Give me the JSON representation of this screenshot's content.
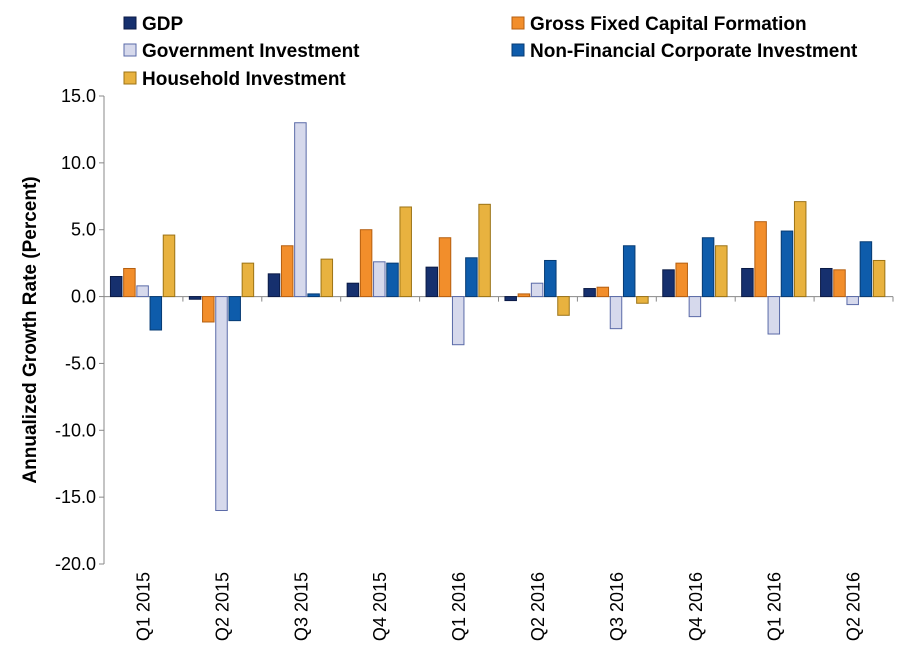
{
  "chart_data": {
    "type": "bar",
    "title": "",
    "xlabel": "",
    "ylabel": "Annualized Growth Rate (Percent)",
    "ylim": [
      -20,
      15
    ],
    "yticks": [
      15,
      10,
      5,
      0,
      -5,
      -10,
      -15,
      -20
    ],
    "ytick_labels": [
      "15.0",
      "10.0",
      "5.0",
      "0.0",
      "-5.0",
      "-10.0",
      "-15.0",
      "-20.0"
    ],
    "grid": false,
    "legend_position": "top",
    "categories": [
      "Q1 2015",
      "Q2 2015",
      "Q3 2015",
      "Q4 2015",
      "Q1 2016",
      "Q2 2016",
      "Q3 2016",
      "Q4 2016",
      "Q1 2016",
      "Q2 2016"
    ],
    "series": [
      {
        "name": "GDP",
        "color": "#16306e",
        "border": "#0b1a45",
        "values": [
          1.5,
          -0.2,
          1.7,
          1.0,
          2.2,
          -0.3,
          0.6,
          2.0,
          2.1,
          2.1
        ]
      },
      {
        "name": "Gross Fixed Capital Formation",
        "color": "#f28e2b",
        "border": "#b55f10",
        "values": [
          2.1,
          -1.9,
          3.8,
          5.0,
          4.4,
          0.2,
          0.7,
          2.5,
          5.6,
          2.0
        ]
      },
      {
        "name": "Government Investment",
        "color": "#d6d9ec",
        "border": "#5a6aa8",
        "values": [
          0.8,
          -16.0,
          13.0,
          2.6,
          -3.6,
          1.0,
          -2.4,
          -1.5,
          -2.8,
          -0.6
        ]
      },
      {
        "name": "Non-Financial Corporate Investment",
        "color": "#0e5cab",
        "border": "#073b73",
        "values": [
          -2.5,
          -1.8,
          0.2,
          2.5,
          2.9,
          2.7,
          3.8,
          4.4,
          4.9,
          4.1
        ]
      },
      {
        "name": "Household Investment",
        "color": "#e8b23f",
        "border": "#9c7316",
        "values": [
          4.6,
          2.5,
          2.8,
          6.7,
          6.9,
          -1.4,
          -0.5,
          3.8,
          7.1,
          2.7
        ]
      }
    ]
  }
}
